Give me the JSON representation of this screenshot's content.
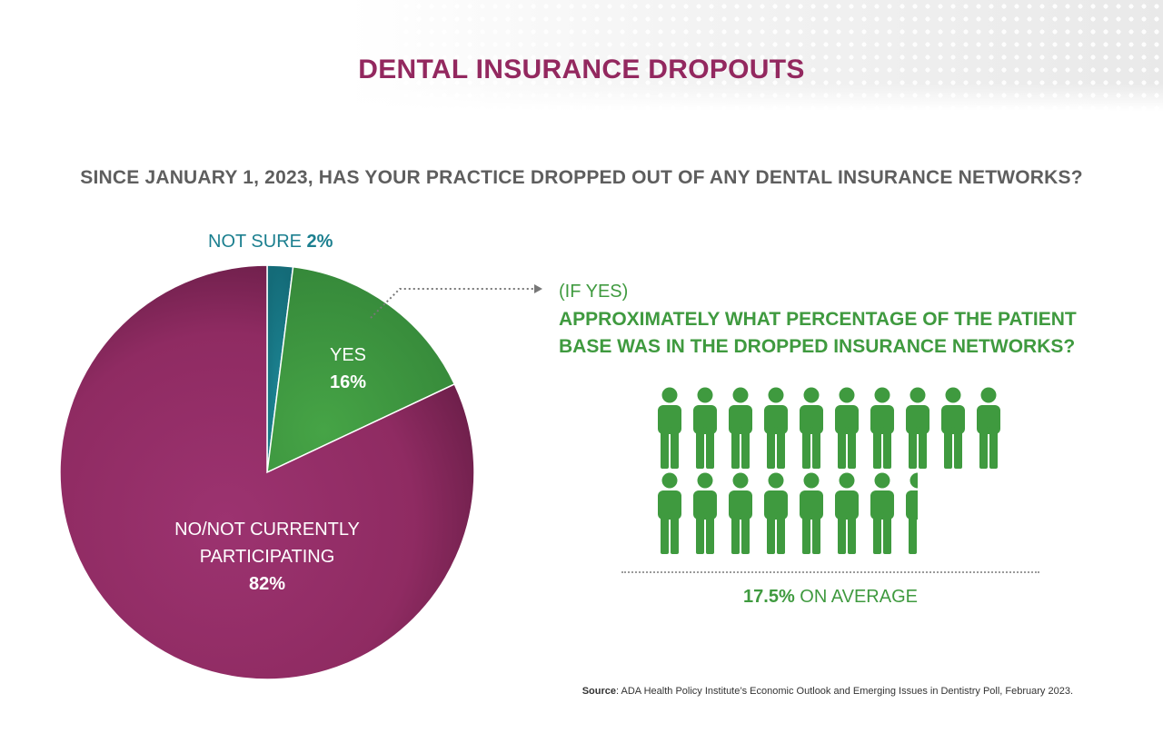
{
  "title": "DENTAL INSURANCE DROPOUTS",
  "question": "SINCE JANUARY 1, 2023, HAS YOUR PRACTICE DROPPED OUT OF ANY DENTAL INSURANCE NETWORKS?",
  "colors": {
    "title": "#93285f",
    "no": "#8f2b62",
    "yes": "#3f9a3f",
    "not_sure": "#1b7f8f",
    "accent_text": "#3f9a3f",
    "question_text": "#5e5e5e"
  },
  "chart_data": [
    {
      "type": "pie",
      "title": "",
      "slices": [
        {
          "label": "NOT SURE",
          "value": 2,
          "value_label": "2%",
          "color": "#1b7f8f"
        },
        {
          "label": "YES",
          "value": 16,
          "value_label": "16%",
          "color": "#3f9a3f"
        },
        {
          "label": "NO/NOT CURRENTLY PARTICIPATING",
          "label_lines": [
            "NO/NOT CURRENTLY",
            "PARTICIPATING"
          ],
          "value": 82,
          "value_label": "82%",
          "color": "#8f2b62"
        }
      ]
    },
    {
      "type": "pictogram",
      "prefix": "(IF YES)",
      "title_lines": [
        "APPROXIMATELY WHAT PERCENTAGE OF THE PATIENT",
        "BASE WAS IN THE DROPPED INSURANCE NETWORKS?"
      ],
      "value": 17.5,
      "icon": "person-icon",
      "value_label": "17.5%",
      "caption": "ON AVERAGE"
    }
  ],
  "source": {
    "label": "Source",
    "text": ": ADA Health Policy Institute’s Economic Outlook and Emerging Issues in Dentistry Poll, February 2023."
  }
}
